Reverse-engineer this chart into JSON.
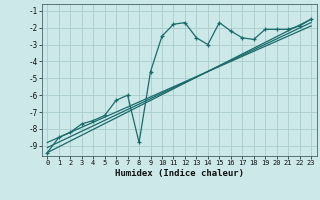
{
  "title": "",
  "xlabel": "Humidex (Indice chaleur)",
  "bg_color": "#cce8e8",
  "grid_color": "#aacccc",
  "line_color": "#1a6b6b",
  "xlim": [
    -0.5,
    23.5
  ],
  "ylim": [
    -9.6,
    -0.6
  ],
  "yticks": [
    -9,
    -8,
    -7,
    -6,
    -5,
    -4,
    -3,
    -2,
    -1
  ],
  "xticks": [
    0,
    1,
    2,
    3,
    4,
    5,
    6,
    7,
    8,
    9,
    10,
    11,
    12,
    13,
    14,
    15,
    16,
    17,
    18,
    19,
    20,
    21,
    22,
    23
  ],
  "scatter_x": [
    0,
    1,
    2,
    3,
    4,
    5,
    6,
    7,
    8,
    9,
    10,
    11,
    12,
    13,
    14,
    15,
    16,
    17,
    18,
    19,
    20,
    21,
    22,
    23
  ],
  "scatter_y": [
    -9.4,
    -8.5,
    -8.2,
    -7.7,
    -7.5,
    -7.2,
    -6.3,
    -6.0,
    -8.8,
    -4.6,
    -2.5,
    -1.8,
    -1.7,
    -2.6,
    -3.0,
    -1.7,
    -2.2,
    -2.6,
    -2.7,
    -2.1,
    -2.1,
    -2.1,
    -1.9,
    -1.5
  ],
  "line1_x": [
    0,
    23
  ],
  "line1_y": [
    -9.4,
    -1.5
  ],
  "line2_x": [
    0,
    23
  ],
  "line2_y": [
    -9.1,
    -1.7
  ],
  "line3_x": [
    0,
    23
  ],
  "line3_y": [
    -8.8,
    -1.9
  ]
}
